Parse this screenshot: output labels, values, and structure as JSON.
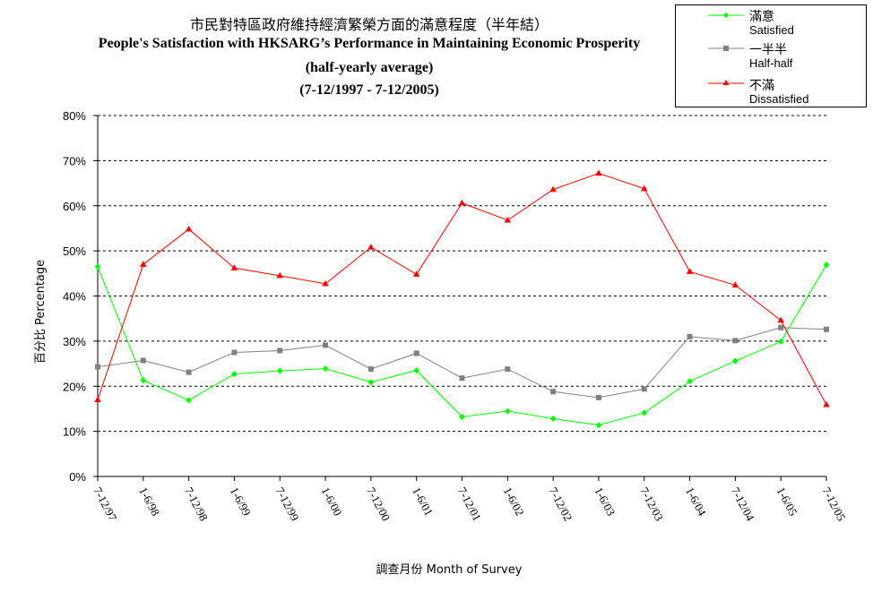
{
  "chart_data": {
    "type": "line",
    "title_zh": "市民對特區政府維持經濟繁榮方面的滿意程度（半年結）",
    "title_en": "People's Satisfaction with HKSARG’s Performance in Maintaining Economic Prosperity",
    "subtitle_1": "(half-yearly average)",
    "subtitle_2": "(7-12/1997 - 7-12/2005)",
    "xlabel": "調查月份 Month of Survey",
    "ylabel": "百分比 Percentage",
    "ylim": [
      0,
      80
    ],
    "yticks": [
      "0%",
      "10%",
      "20%",
      "30%",
      "40%",
      "50%",
      "60%",
      "70%",
      "80%"
    ],
    "categories": [
      "7-12/97",
      "1-6/98",
      "7-12/98",
      "1-6/99",
      "7-12/99",
      "1-6/00",
      "7-12/00",
      "1-6/01",
      "7-12/01",
      "1-6/02",
      "7-12/02",
      "1-6/03",
      "7-12/03",
      "1-6/04",
      "7-12/04",
      "1-6/05",
      "7-12/05"
    ],
    "grid": "horizontal dashed",
    "legend_position": "top-right",
    "series": [
      {
        "name_zh": "滿意",
        "name_en": "Satisfied",
        "color": "#00ff00",
        "marker": "diamond",
        "values": [
          46.5,
          21.3,
          16.9,
          22.7,
          23.4,
          23.9,
          20.9,
          23.5,
          13.2,
          14.5,
          12.8,
          11.4,
          14.1,
          21.1,
          25.6,
          29.9,
          46.9
        ]
      },
      {
        "name_zh": "一半半",
        "name_en": "Half-half",
        "color": "#808080",
        "marker": "square",
        "values": [
          24.3,
          25.7,
          23.1,
          27.5,
          27.9,
          29.1,
          23.8,
          27.3,
          21.8,
          23.8,
          18.8,
          17.5,
          19.4,
          31.0,
          30.1,
          33.0,
          32.6
        ]
      },
      {
        "name_zh": "不滿",
        "name_en": "Dissatisfied",
        "color": "#ff0000",
        "marker": "triangle",
        "values": [
          17.0,
          47.0,
          54.8,
          46.2,
          44.5,
          42.7,
          50.8,
          44.8,
          60.6,
          56.8,
          63.6,
          67.2,
          63.8,
          45.4,
          42.4,
          34.6,
          15.9
        ]
      }
    ]
  }
}
